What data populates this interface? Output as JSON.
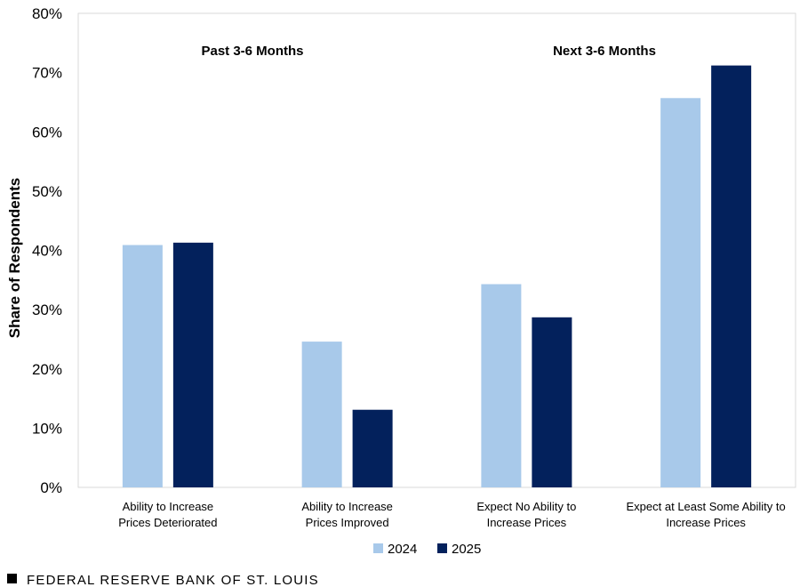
{
  "chart_data": {
    "type": "bar",
    "ylabel": "Share of Respondents",
    "ylim": [
      0,
      80
    ],
    "yticks": [
      "0%",
      "10%",
      "20%",
      "30%",
      "40%",
      "50%",
      "60%",
      "70%",
      "80%"
    ],
    "grid": false,
    "legend_position": "bottom",
    "group_labels": [
      "Past 3-6 Months",
      "Next 3-6 Months"
    ],
    "categories": [
      [
        "Ability to Increase",
        "Prices Deteriorated"
      ],
      [
        "Ability to Increase",
        "Prices Improved"
      ],
      [
        "Expect No Ability to",
        "Increase Prices"
      ],
      [
        "Expect at Least Some Ability to",
        "Increase Prices"
      ]
    ],
    "series": [
      {
        "name": "2024",
        "color": "#a8c9ea",
        "values": [
          40.9,
          24.6,
          34.3,
          65.7
        ]
      },
      {
        "name": "2025",
        "color": "#03215c",
        "values": [
          41.3,
          13.1,
          28.7,
          71.2
        ]
      }
    ]
  },
  "footer": {
    "source": "FEDERAL RESERVE BANK OF ST. LOUIS"
  }
}
